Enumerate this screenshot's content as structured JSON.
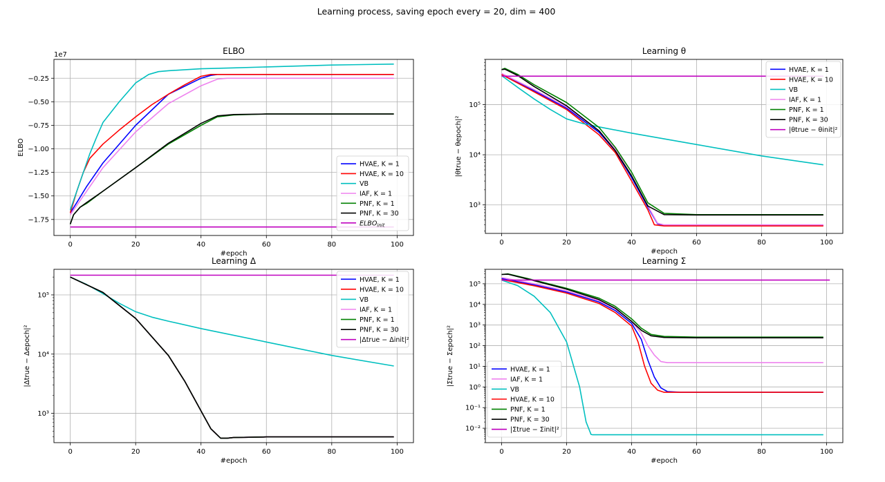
{
  "figure_title": "Learning process,  saving epoch every = 20, dim = 400",
  "colors": {
    "HVAE1": "#0000ff",
    "HVAE10": "#ff0000",
    "VB": "#00bfbf",
    "IAF": "#ee82ee",
    "PNF1": "#008000",
    "PNF30": "#000000",
    "init": "#bf00bf",
    "grid": "#b0b0b0"
  },
  "chart_data": [
    {
      "id": "elbo",
      "type": "line",
      "title": "ELBO",
      "xlabel": "#epoch",
      "ylabel": "ELBO",
      "offset_text": "1e7",
      "yscale": "linear",
      "xlim": [
        -5,
        105
      ],
      "ylim": [
        -1.92,
        -0.05
      ],
      "xticks": [
        0,
        20,
        40,
        60,
        80,
        100
      ],
      "xtick_labels": [
        "0",
        "20",
        "40",
        "60",
        "80",
        "100"
      ],
      "yticks": [
        -1.75,
        -1.5,
        -1.25,
        -1.0,
        -0.75,
        -0.5,
        -0.25
      ],
      "ytick_labels": [
        "−1.75",
        "−1.50",
        "−1.25",
        "−1.00",
        "−0.75",
        "−0.50",
        "−0.25"
      ],
      "grid": true,
      "legend_position": "lower-right",
      "series": [
        {
          "name": "HVAE, K = 1",
          "color_key": "HVAE1",
          "x": [
            0,
            2,
            5,
            10,
            20,
            30,
            40,
            43,
            45,
            50,
            60,
            80,
            99
          ],
          "y": [
            -1.68,
            -1.57,
            -1.4,
            -1.15,
            -0.75,
            -0.42,
            -0.25,
            -0.22,
            -0.21,
            -0.21,
            -0.21,
            -0.21,
            -0.21
          ]
        },
        {
          "name": "HVAE, K = 10",
          "color_key": "HVAE10",
          "x": [
            0,
            2,
            4,
            6,
            10,
            15,
            20,
            25,
            30,
            35,
            40,
            43,
            45,
            60,
            80,
            99
          ],
          "y": [
            -1.68,
            -1.45,
            -1.25,
            -1.1,
            -0.95,
            -0.8,
            -0.66,
            -0.53,
            -0.42,
            -0.32,
            -0.23,
            -0.21,
            -0.21,
            -0.21,
            -0.21,
            -0.21
          ]
        },
        {
          "name": "VB",
          "color_key": "VB",
          "x": [
            0,
            2,
            4,
            6,
            8,
            10,
            15,
            20,
            24,
            27,
            30,
            40,
            50,
            60,
            80,
            99
          ],
          "y": [
            -1.65,
            -1.45,
            -1.25,
            -1.05,
            -0.88,
            -0.72,
            -0.5,
            -0.3,
            -0.21,
            -0.18,
            -0.17,
            -0.15,
            -0.14,
            -0.13,
            -0.11,
            -0.1
          ]
        },
        {
          "name": "IAF, K = 1",
          "color_key": "IAF",
          "x": [
            0,
            2,
            5,
            10,
            20,
            30,
            40,
            45,
            48,
            60,
            80,
            99
          ],
          "y": [
            -1.7,
            -1.6,
            -1.45,
            -1.2,
            -0.82,
            -0.52,
            -0.33,
            -0.26,
            -0.25,
            -0.25,
            -0.25,
            -0.25
          ]
        },
        {
          "name": "PNF, K = 1",
          "color_key": "PNF1",
          "x": [
            0,
            1,
            3,
            5,
            10,
            20,
            30,
            40,
            45,
            50,
            60,
            80,
            99
          ],
          "y": [
            -1.8,
            -1.7,
            -1.62,
            -1.58,
            -1.45,
            -1.2,
            -0.95,
            -0.75,
            -0.66,
            -0.64,
            -0.63,
            -0.63,
            -0.63
          ]
        },
        {
          "name": "PNF, K = 30",
          "color_key": "PNF30",
          "x": [
            0,
            1,
            3,
            5,
            10,
            20,
            30,
            40,
            45,
            50,
            60,
            80,
            99
          ],
          "y": [
            -1.8,
            -1.7,
            -1.62,
            -1.57,
            -1.45,
            -1.2,
            -0.94,
            -0.73,
            -0.65,
            -0.635,
            -0.63,
            -0.63,
            -0.63
          ]
        },
        {
          "name": "ELBO",
          "name_sub": "init",
          "color_key": "init",
          "x": [
            0,
            99
          ],
          "y": [
            -1.83,
            -1.83
          ]
        }
      ]
    },
    {
      "id": "theta",
      "type": "line",
      "title": "Learning θ",
      "xlabel": "#epoch",
      "ylabel": "|θtrue − θepoch|²",
      "yscale": "log",
      "xlim": [
        -5,
        105
      ],
      "ylim": [
        270,
        800000
      ],
      "xticks": [
        0,
        20,
        40,
        60,
        80,
        100
      ],
      "xtick_labels": [
        "0",
        "20",
        "40",
        "60",
        "80",
        "100"
      ],
      "yticks": [
        1000,
        10000,
        100000
      ],
      "ytick_labels": [
        "10³",
        "10⁴",
        "10⁵"
      ],
      "grid": true,
      "legend_position": "upper-right",
      "series": [
        {
          "name": "HVAE, K = 1",
          "color_key": "HVAE1",
          "x": [
            0,
            10,
            20,
            30,
            35,
            40,
            45,
            48,
            50,
            60,
            80,
            99
          ],
          "y": [
            400000,
            190000,
            85000,
            28000,
            12000,
            3500,
            900,
            420,
            390,
            390,
            390,
            390
          ]
        },
        {
          "name": "HVAE, K = 10",
          "color_key": "HVAE10",
          "x": [
            0,
            10,
            20,
            30,
            35,
            40,
            45,
            47,
            50,
            60,
            80,
            99
          ],
          "y": [
            400000,
            180000,
            80000,
            25000,
            11000,
            3000,
            800,
            400,
            380,
            380,
            380,
            380
          ]
        },
        {
          "name": "VB",
          "color_key": "VB",
          "x": [
            0,
            5,
            10,
            15,
            20,
            25,
            30,
            40,
            60,
            80,
            99
          ],
          "y": [
            380000,
            220000,
            130000,
            80000,
            52000,
            42000,
            36000,
            27000,
            16000,
            9500,
            6300
          ]
        },
        {
          "name": "IAF, K = 1",
          "color_key": "IAF",
          "x": [
            0,
            10,
            20,
            30,
            35,
            40,
            45,
            48,
            50,
            60,
            80,
            99
          ],
          "y": [
            420000,
            200000,
            90000,
            30000,
            13000,
            3800,
            950,
            430,
            400,
            400,
            400,
            400
          ]
        },
        {
          "name": "PNF, K = 1",
          "color_key": "PNF1",
          "x": [
            0,
            1,
            5,
            10,
            20,
            30,
            35,
            40,
            45,
            50,
            60,
            80,
            99
          ],
          "y": [
            500000,
            530000,
            400000,
            250000,
            110000,
            35000,
            14000,
            4500,
            1100,
            680,
            640,
            640,
            640
          ]
        },
        {
          "name": "PNF, K = 30",
          "color_key": "PNF30",
          "x": [
            0,
            1,
            5,
            10,
            20,
            30,
            35,
            40,
            45,
            50,
            60,
            80,
            99
          ],
          "y": [
            500000,
            510000,
            380000,
            230000,
            95000,
            30000,
            12000,
            3800,
            950,
            640,
            630,
            630,
            630
          ]
        },
        {
          "name": "|θtrue − θinit|²",
          "color_key": "init",
          "x": [
            0,
            99
          ],
          "y": [
            370000,
            370000
          ]
        }
      ]
    },
    {
      "id": "delta",
      "type": "line",
      "title": "Learning Δ",
      "xlabel": "#epoch",
      "ylabel": "|Δtrue − Δepoch|²",
      "yscale": "log",
      "xlim": [
        -5,
        105
      ],
      "ylim": [
        320,
        270000
      ],
      "xticks": [
        0,
        20,
        40,
        60,
        80,
        100
      ],
      "xtick_labels": [
        "0",
        "20",
        "40",
        "60",
        "80",
        "100"
      ],
      "yticks": [
        1000,
        10000,
        100000
      ],
      "ytick_labels": [
        "10³",
        "10⁴",
        "10⁵"
      ],
      "grid": true,
      "legend_position": "upper-right",
      "series": [
        {
          "name": "HVAE, K = 1",
          "color_key": "HVAE1",
          "x": [
            0,
            10,
            20,
            30,
            35,
            40,
            43,
            46,
            48,
            50,
            60,
            80,
            99
          ],
          "y": [
            200000,
            110000,
            40000,
            9500,
            3500,
            1100,
            550,
            380,
            380,
            390,
            400,
            400,
            400
          ]
        },
        {
          "name": "HVAE, K = 10",
          "color_key": "HVAE10",
          "x": [
            0,
            10,
            20,
            30,
            35,
            40,
            43,
            46,
            48,
            50,
            60,
            80,
            99
          ],
          "y": [
            200000,
            110000,
            40000,
            9500,
            3500,
            1100,
            550,
            380,
            380,
            390,
            400,
            400,
            400
          ]
        },
        {
          "name": "VB",
          "color_key": "VB",
          "x": [
            0,
            5,
            10,
            15,
            20,
            25,
            30,
            40,
            60,
            80,
            99
          ],
          "y": [
            200000,
            150000,
            105000,
            72000,
            52000,
            42000,
            36000,
            27000,
            16000,
            9500,
            6300
          ]
        },
        {
          "name": "IAF, K = 1",
          "color_key": "IAF",
          "x": [
            0,
            10,
            20,
            30,
            35,
            40,
            43,
            46,
            48,
            50,
            60,
            80,
            99
          ],
          "y": [
            200000,
            110000,
            40000,
            9500,
            3500,
            1100,
            550,
            380,
            380,
            390,
            400,
            400,
            400
          ]
        },
        {
          "name": "PNF, K = 1",
          "color_key": "PNF1",
          "x": [
            0,
            10,
            20,
            30,
            35,
            40,
            43,
            46,
            48,
            50,
            60,
            80,
            99
          ],
          "y": [
            200000,
            110000,
            40000,
            9500,
            3500,
            1100,
            550,
            380,
            380,
            390,
            400,
            400,
            400
          ]
        },
        {
          "name": "PNF, K = 30",
          "color_key": "PNF30",
          "x": [
            0,
            10,
            20,
            30,
            35,
            40,
            43,
            46,
            48,
            50,
            60,
            80,
            99
          ],
          "y": [
            200000,
            110000,
            40000,
            9500,
            3500,
            1100,
            550,
            380,
            380,
            390,
            400,
            400,
            400
          ]
        },
        {
          "name": "|Δtrue − Δinit|²",
          "color_key": "init",
          "x": [
            0,
            99
          ],
          "y": [
            215000,
            215000
          ]
        }
      ]
    },
    {
      "id": "sigma",
      "type": "line",
      "title": "Learning Σ",
      "xlabel": "#epoch",
      "ylabel": "|Σtrue − Σepoch|²",
      "yscale": "log",
      "xlim": [
        -5,
        105
      ],
      "ylim": [
        0.002,
        500000
      ],
      "xticks": [
        0,
        20,
        40,
        60,
        80,
        100
      ],
      "xtick_labels": [
        "0",
        "20",
        "40",
        "60",
        "80",
        "100"
      ],
      "yticks": [
        0.01,
        0.1,
        1,
        10,
        100,
        1000,
        10000,
        100000
      ],
      "ytick_labels": [
        "10⁻²",
        "10⁻¹",
        "10⁰",
        "10¹",
        "10²",
        "10³",
        "10⁴",
        "10⁵"
      ],
      "grid": true,
      "legend_position": "lower-left",
      "series": [
        {
          "name": "HVAE, K = 1",
          "color_key": "HVAE1",
          "x": [
            0,
            10,
            20,
            30,
            35,
            40,
            43,
            45,
            47,
            49,
            51,
            55,
            60,
            80,
            99
          ],
          "y": [
            180000,
            90000,
            40000,
            13000,
            5000,
            1200,
            200,
            20,
            3,
            0.9,
            0.6,
            0.55,
            0.55,
            0.55,
            0.55
          ]
        },
        {
          "name": "IAF, K = 1",
          "color_key": "IAF",
          "x": [
            0,
            10,
            20,
            30,
            35,
            40,
            43,
            45,
            47,
            49,
            51,
            60,
            80,
            99
          ],
          "y": [
            200000,
            100000,
            45000,
            15000,
            6000,
            1500,
            400,
            100,
            35,
            17,
            15,
            15,
            15,
            15
          ]
        },
        {
          "name": "VB",
          "color_key": "VB",
          "x": [
            0,
            5,
            10,
            15,
            20,
            24,
            26,
            27,
            27.5,
            28,
            30,
            60,
            99
          ],
          "y": [
            150000,
            80000,
            25000,
            4000,
            150,
            1,
            0.02,
            0.008,
            0.005,
            0.0048,
            0.0048,
            0.0048,
            0.0048
          ]
        },
        {
          "name": "HVAE, K = 10",
          "color_key": "HVAE10",
          "x": [
            0,
            10,
            20,
            30,
            35,
            40,
            42,
            44,
            46,
            48,
            50,
            55,
            60,
            80,
            99
          ],
          "y": [
            160000,
            80000,
            35000,
            11000,
            4000,
            900,
            150,
            10,
            1.5,
            0.7,
            0.55,
            0.55,
            0.55,
            0.55,
            0.55
          ]
        },
        {
          "name": "PNF, K = 1",
          "color_key": "PNF1",
          "x": [
            0,
            2,
            10,
            20,
            30,
            35,
            40,
            43,
            46,
            50,
            60,
            80,
            99
          ],
          "y": [
            280000,
            300000,
            150000,
            60000,
            20000,
            8000,
            2000,
            700,
            350,
            280,
            260,
            260,
            260
          ]
        },
        {
          "name": "PNF, K = 30",
          "color_key": "PNF30",
          "x": [
            0,
            2,
            10,
            20,
            30,
            35,
            40,
            43,
            46,
            50,
            60,
            80,
            99
          ],
          "y": [
            280000,
            290000,
            140000,
            55000,
            17000,
            6500,
            1500,
            550,
            300,
            250,
            240,
            240,
            240
          ]
        },
        {
          "name": "|Σtrue − Σinit|²",
          "color_key": "init",
          "x": [
            0,
            101
          ],
          "y": [
            150000,
            150000
          ]
        }
      ]
    }
  ]
}
